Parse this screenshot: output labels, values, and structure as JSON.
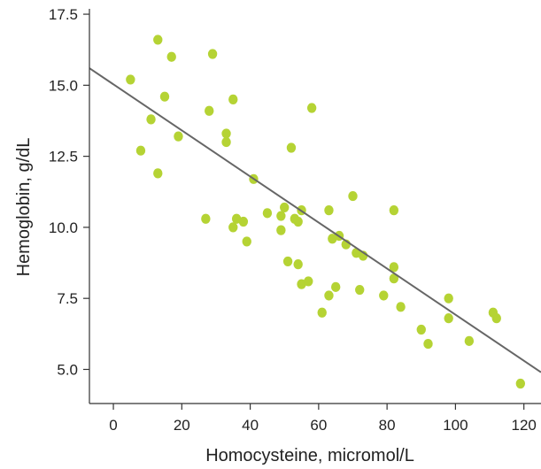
{
  "chart_data": {
    "type": "scatter",
    "xlabel": "Homocysteine, micromol/L",
    "ylabel": "Hemoglobin, g/dL",
    "xlim": [
      -7,
      125
    ],
    "ylim": [
      3.8,
      18.0
    ],
    "x_ticks": [
      0,
      20,
      40,
      60,
      80,
      100,
      120
    ],
    "x_tick_labels": [
      "0",
      "20",
      "40",
      "60",
      "80",
      "100",
      "120"
    ],
    "y_ticks": [
      5.0,
      7.5,
      10.0,
      12.5,
      15.0,
      17.5
    ],
    "y_tick_labels": [
      "5.0",
      "7.5",
      "10.0",
      "12.5",
      "15.0",
      "17.5"
    ],
    "grid": false,
    "point_color": "#b5d334",
    "line_color": "#666666",
    "trend_line": {
      "x": [
        -7,
        125
      ],
      "y": [
        15.6,
        4.9
      ]
    },
    "points": [
      {
        "x": 5,
        "y": 15.2
      },
      {
        "x": 13,
        "y": 16.6
      },
      {
        "x": 17,
        "y": 16.0
      },
      {
        "x": 29,
        "y": 16.1
      },
      {
        "x": 15,
        "y": 14.6
      },
      {
        "x": 11,
        "y": 13.8
      },
      {
        "x": 8,
        "y": 12.7
      },
      {
        "x": 19,
        "y": 13.2
      },
      {
        "x": 13,
        "y": 11.9
      },
      {
        "x": 28,
        "y": 14.1
      },
      {
        "x": 35,
        "y": 14.5
      },
      {
        "x": 33,
        "y": 13.3
      },
      {
        "x": 33,
        "y": 13.0
      },
      {
        "x": 58,
        "y": 14.2
      },
      {
        "x": 52,
        "y": 12.8
      },
      {
        "x": 41,
        "y": 11.7
      },
      {
        "x": 27,
        "y": 10.3
      },
      {
        "x": 35,
        "y": 10.0
      },
      {
        "x": 36,
        "y": 10.3
      },
      {
        "x": 38,
        "y": 10.2
      },
      {
        "x": 39,
        "y": 9.5
      },
      {
        "x": 45,
        "y": 10.5
      },
      {
        "x": 49,
        "y": 10.4
      },
      {
        "x": 50,
        "y": 10.7
      },
      {
        "x": 49,
        "y": 9.9
      },
      {
        "x": 53,
        "y": 10.3
      },
      {
        "x": 54,
        "y": 10.2
      },
      {
        "x": 55,
        "y": 10.6
      },
      {
        "x": 63,
        "y": 10.6
      },
      {
        "x": 70,
        "y": 11.1
      },
      {
        "x": 82,
        "y": 10.6
      },
      {
        "x": 64,
        "y": 9.6
      },
      {
        "x": 66,
        "y": 9.7
      },
      {
        "x": 68,
        "y": 9.4
      },
      {
        "x": 71,
        "y": 9.1
      },
      {
        "x": 73,
        "y": 9.0
      },
      {
        "x": 51,
        "y": 8.8
      },
      {
        "x": 54,
        "y": 8.7
      },
      {
        "x": 55,
        "y": 8.0
      },
      {
        "x": 57,
        "y": 8.1
      },
      {
        "x": 65,
        "y": 7.9
      },
      {
        "x": 63,
        "y": 7.6
      },
      {
        "x": 61,
        "y": 7.0
      },
      {
        "x": 72,
        "y": 7.8
      },
      {
        "x": 82,
        "y": 8.6
      },
      {
        "x": 82,
        "y": 8.2
      },
      {
        "x": 79,
        "y": 7.6
      },
      {
        "x": 84,
        "y": 7.2
      },
      {
        "x": 90,
        "y": 6.4
      },
      {
        "x": 92,
        "y": 5.9
      },
      {
        "x": 98,
        "y": 7.5
      },
      {
        "x": 98,
        "y": 6.8
      },
      {
        "x": 104,
        "y": 6.0
      },
      {
        "x": 111,
        "y": 7.0
      },
      {
        "x": 112,
        "y": 6.8
      },
      {
        "x": 119,
        "y": 4.5
      }
    ]
  }
}
